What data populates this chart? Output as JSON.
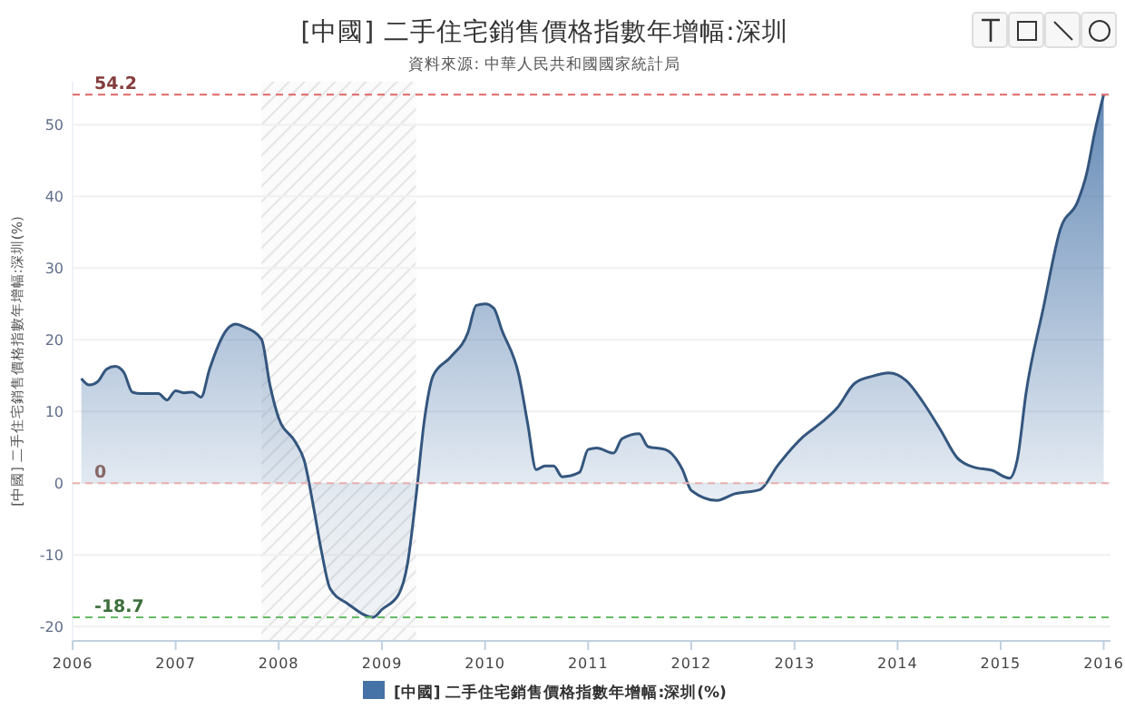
{
  "chart_data": {
    "type": "area",
    "title": "[中國] 二手住宅銷售價格指數年增幅:深圳",
    "subtitle": "資料來源: 中華人民共和國國家統計局",
    "ylabel": "[中國] 二手住宅銷售價格指數年增幅:深圳(%)",
    "x": [
      "2006-02",
      "2006-03",
      "2006-04",
      "2006-05",
      "2006-06",
      "2006-07",
      "2006-08",
      "2006-09",
      "2006-11",
      "2006-12",
      "2007-01",
      "2007-02",
      "2007-03",
      "2007-04",
      "2007-05",
      "2007-07",
      "2007-08",
      "2007-09",
      "2007-11",
      "2007-12",
      "2008-01",
      "2008-03",
      "2008-04",
      "2008-05",
      "2008-06",
      "2008-07",
      "2008-09",
      "2008-12",
      "2009-01",
      "2009-03",
      "2009-04",
      "2009-05",
      "2009-06",
      "2009-07",
      "2009-09",
      "2009-11",
      "2009-12",
      "2010-01",
      "2010-02",
      "2010-03",
      "2010-05",
      "2010-06",
      "2010-07",
      "2010-08",
      "2010-09",
      "2010-10",
      "2010-12",
      "2011-01",
      "2011-02",
      "2011-04",
      "2011-05",
      "2011-07",
      "2011-08",
      "2011-10",
      "2011-12",
      "2012-01",
      "2012-04",
      "2012-06",
      "2012-09",
      "2012-11",
      "2013-02",
      "2013-04",
      "2013-06",
      "2013-08",
      "2013-10",
      "2013-12",
      "2014-02",
      "2014-04",
      "2014-06",
      "2014-08",
      "2014-10",
      "2014-12",
      "2015-02",
      "2015-03",
      "2015-04",
      "2015-06",
      "2015-08",
      "2015-10",
      "2015-11",
      "2015-12",
      "2016-01"
    ],
    "series": [
      {
        "name": "[中國] 二手住宅銷售價格指數年增幅:深圳(%)",
        "color": "#4572a7",
        "values": [
          14.6,
          13.7,
          14.2,
          15.9,
          16.3,
          15.5,
          12.7,
          12.5,
          12.5,
          11.6,
          12.9,
          12.6,
          12.7,
          12.0,
          15.9,
          21.4,
          22.2,
          21.8,
          20.1,
          13.7,
          9.1,
          5.7,
          3.1,
          -2.8,
          -9.6,
          -14.7,
          -16.8,
          -18.7,
          -17.6,
          -15.5,
          -11.3,
          -2.0,
          9.1,
          15.0,
          17.6,
          21.0,
          24.8,
          25.0,
          24.4,
          21.4,
          15.0,
          8.3,
          1.9,
          2.4,
          2.4,
          0.9,
          1.5,
          4.7,
          4.9,
          4.2,
          6.2,
          6.9,
          5.1,
          4.7,
          1.9,
          -1.0,
          -2.4,
          -1.5,
          -0.9,
          2.4,
          6.5,
          8.3,
          10.5,
          13.9,
          14.9,
          15.4,
          14.3,
          11.3,
          7.5,
          3.5,
          2.2,
          1.8,
          0.7,
          3.3,
          12.6,
          24.4,
          35.5,
          39.3,
          43.1,
          49.1,
          54.2
        ]
      }
    ],
    "xlim": [
      "2006-01",
      "2016-01-25"
    ],
    "xticks": [
      "2006",
      "2007",
      "2008",
      "2009",
      "2010",
      "2011",
      "2012",
      "2013",
      "2014",
      "2015",
      "2016"
    ],
    "ylim": [
      -22,
      56
    ],
    "yticks": [
      -20,
      -10,
      0,
      10,
      20,
      30,
      40,
      50
    ],
    "grid": "y",
    "legend": "bottom",
    "ref_lines": [
      {
        "axis": "y",
        "value": 54.2,
        "label": "54.2",
        "color": "#e06666",
        "line_style": "dashed"
      },
      {
        "axis": "y",
        "value": 0,
        "label": "0",
        "color": "#e8b0b0",
        "line_style": "dashed"
      },
      {
        "axis": "y",
        "value": -18.7,
        "label": "-18.7",
        "color": "#66bb66",
        "line_style": "dashed"
      }
    ],
    "bands": [
      {
        "axis": "x",
        "from": "2007-11",
        "to": "2009-05",
        "color": "#dcdcdc"
      }
    ]
  }
}
